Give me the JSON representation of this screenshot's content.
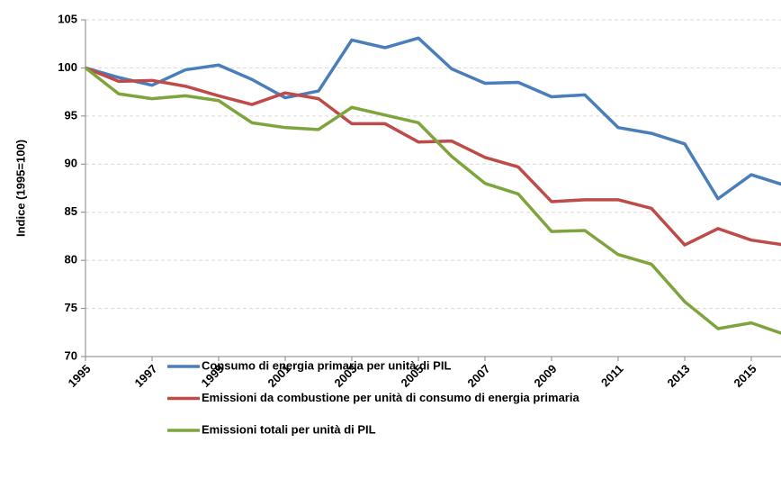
{
  "chart_data": {
    "type": "line",
    "y_label": "Indice (1995=100)",
    "x": [
      1995,
      1996,
      1997,
      1998,
      1999,
      2000,
      2001,
      2002,
      2003,
      2004,
      2005,
      2006,
      2007,
      2008,
      2009,
      2010,
      2011,
      2012,
      2013,
      2014,
      2015,
      2016
    ],
    "xlim": [
      1995,
      2016
    ],
    "xticks": [
      1995,
      1997,
      1999,
      2001,
      2003,
      2005,
      2007,
      2009,
      2011,
      2013,
      2015
    ],
    "ylim": [
      70,
      105
    ],
    "yticks": [
      70,
      75,
      80,
      85,
      90,
      95,
      100,
      105
    ],
    "grid": true,
    "legend": "bottom",
    "series": [
      {
        "name": "Consumo di energia primaria per unità di PIL",
        "color": "#4a7ebb",
        "values": [
          100,
          99.0,
          98.2,
          99.8,
          100.3,
          98.8,
          96.9,
          97.6,
          102.9,
          102.1,
          103.1,
          99.9,
          98.4,
          98.5,
          97.0,
          97.2,
          93.8,
          93.2,
          92.1,
          86.4,
          88.9,
          87.8
        ]
      },
      {
        "name": "Emissioni da combustione per unità di consumo di energia primaria",
        "color": "#be4b48",
        "values": [
          100,
          98.6,
          98.7,
          98.1,
          97.1,
          96.2,
          97.4,
          96.8,
          94.2,
          94.2,
          92.3,
          92.4,
          90.7,
          89.7,
          86.1,
          86.3,
          86.3,
          85.4,
          81.6,
          83.3,
          82.1,
          81.6
        ]
      },
      {
        "name": "Emissioni totali per unità di PIL",
        "color": "#7ea53d",
        "values": [
          100,
          97.3,
          96.8,
          97.1,
          96.6,
          94.3,
          93.8,
          93.6,
          95.9,
          95.1,
          94.3,
          90.8,
          88.0,
          86.9,
          83.0,
          83.1,
          80.6,
          79.6,
          75.7,
          72.9,
          73.5,
          72.3
        ]
      }
    ]
  }
}
